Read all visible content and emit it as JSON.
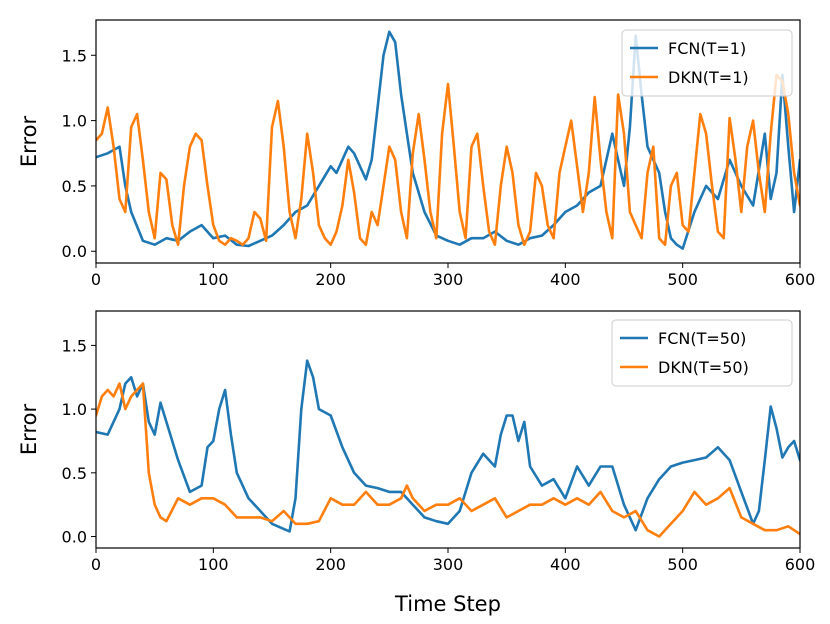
{
  "colors": {
    "fcn": "#1f77b4",
    "dkn": "#ff7f0e"
  },
  "chart_data": [
    {
      "type": "line",
      "xlabel": "",
      "ylabel": "Error",
      "xlim": [
        0,
        600
      ],
      "ylim": [
        -0.09,
        1.77
      ],
      "xticks": [
        0,
        100,
        200,
        300,
        400,
        500,
        600
      ],
      "yticks": [
        0.0,
        0.5,
        1.0,
        1.5
      ],
      "ytick_labels": [
        "0.0",
        "0.5",
        "1.0",
        "1.5"
      ],
      "legend_position": "top-right",
      "series": [
        {
          "name": "FCN(T=1)",
          "color": "#1f77b4",
          "x": [
            0,
            10,
            20,
            25,
            30,
            40,
            50,
            60,
            70,
            80,
            90,
            100,
            110,
            120,
            130,
            140,
            150,
            160,
            170,
            180,
            190,
            200,
            205,
            210,
            215,
            220,
            230,
            235,
            240,
            245,
            250,
            255,
            260,
            265,
            270,
            280,
            290,
            300,
            310,
            320,
            330,
            340,
            350,
            360,
            370,
            380,
            390,
            400,
            410,
            420,
            430,
            440,
            445,
            450,
            455,
            460,
            465,
            470,
            480,
            485,
            490,
            495,
            500,
            510,
            520,
            530,
            540,
            550,
            560,
            570,
            575,
            580,
            585,
            590,
            595,
            600
          ],
          "values": [
            0.72,
            0.75,
            0.8,
            0.5,
            0.3,
            0.08,
            0.05,
            0.1,
            0.08,
            0.15,
            0.2,
            0.1,
            0.12,
            0.05,
            0.04,
            0.08,
            0.12,
            0.2,
            0.3,
            0.35,
            0.5,
            0.65,
            0.6,
            0.7,
            0.8,
            0.75,
            0.55,
            0.7,
            1.1,
            1.5,
            1.68,
            1.6,
            1.2,
            0.9,
            0.6,
            0.3,
            0.12,
            0.08,
            0.05,
            0.1,
            0.1,
            0.15,
            0.08,
            0.05,
            0.1,
            0.12,
            0.2,
            0.3,
            0.35,
            0.45,
            0.5,
            0.9,
            0.7,
            0.5,
            0.95,
            1.65,
            1.2,
            0.8,
            0.6,
            0.3,
            0.1,
            0.05,
            0.02,
            0.3,
            0.5,
            0.4,
            0.7,
            0.5,
            0.35,
            0.9,
            0.4,
            0.6,
            1.35,
            0.8,
            0.3,
            0.7
          ]
        },
        {
          "name": "DKN(T=1)",
          "color": "#ff7f0e",
          "x": [
            0,
            5,
            10,
            15,
            20,
            25,
            30,
            35,
            40,
            45,
            50,
            55,
            60,
            65,
            70,
            75,
            80,
            85,
            90,
            95,
            100,
            105,
            110,
            115,
            120,
            125,
            130,
            135,
            140,
            145,
            150,
            155,
            160,
            165,
            170,
            175,
            180,
            185,
            190,
            195,
            200,
            205,
            210,
            215,
            220,
            225,
            230,
            235,
            240,
            245,
            250,
            255,
            260,
            265,
            270,
            275,
            280,
            285,
            290,
            295,
            300,
            305,
            310,
            315,
            320,
            325,
            330,
            335,
            340,
            345,
            350,
            355,
            360,
            365,
            370,
            375,
            380,
            385,
            390,
            395,
            400,
            405,
            410,
            415,
            420,
            425,
            430,
            435,
            440,
            445,
            450,
            455,
            460,
            465,
            470,
            475,
            480,
            485,
            490,
            495,
            500,
            505,
            510,
            515,
            520,
            525,
            530,
            535,
            540,
            545,
            550,
            555,
            560,
            565,
            570,
            575,
            580,
            585,
            590,
            595,
            600
          ],
          "values": [
            0.85,
            0.9,
            1.1,
            0.8,
            0.4,
            0.3,
            0.95,
            1.05,
            0.7,
            0.3,
            0.1,
            0.6,
            0.55,
            0.2,
            0.05,
            0.5,
            0.8,
            0.9,
            0.85,
            0.5,
            0.2,
            0.08,
            0.05,
            0.1,
            0.08,
            0.05,
            0.1,
            0.3,
            0.25,
            0.08,
            0.95,
            1.15,
            0.8,
            0.3,
            0.1,
            0.4,
            0.9,
            0.6,
            0.2,
            0.1,
            0.05,
            0.15,
            0.35,
            0.7,
            0.45,
            0.1,
            0.05,
            0.3,
            0.2,
            0.5,
            0.8,
            0.7,
            0.3,
            0.1,
            0.75,
            1.05,
            0.7,
            0.3,
            0.1,
            0.9,
            1.28,
            0.8,
            0.3,
            0.1,
            0.8,
            0.9,
            0.5,
            0.15,
            0.05,
            0.5,
            0.8,
            0.6,
            0.2,
            0.05,
            0.15,
            0.6,
            0.5,
            0.2,
            0.1,
            0.6,
            0.8,
            1.0,
            0.65,
            0.3,
            0.6,
            1.18,
            0.7,
            0.3,
            0.1,
            1.2,
            0.9,
            0.3,
            0.2,
            0.1,
            0.6,
            0.8,
            0.1,
            0.05,
            0.5,
            0.6,
            0.2,
            0.15,
            0.6,
            1.05,
            0.9,
            0.5,
            0.15,
            0.1,
            1.02,
            0.7,
            0.3,
            0.8,
            1.0,
            0.6,
            0.3,
            0.9,
            1.35,
            1.3,
            1.05,
            0.6,
            0.35
          ]
        }
      ]
    },
    {
      "type": "line",
      "xlabel": "Time Step",
      "ylabel": "Error",
      "xlim": [
        0,
        600
      ],
      "ylim": [
        -0.09,
        1.77
      ],
      "xticks": [
        0,
        100,
        200,
        300,
        400,
        500,
        600
      ],
      "yticks": [
        0.0,
        0.5,
        1.0,
        1.5
      ],
      "ytick_labels": [
        "0.0",
        "0.5",
        "1.0",
        "1.5"
      ],
      "legend_position": "top-right",
      "series": [
        {
          "name": "FCN(T=50)",
          "color": "#1f77b4",
          "x": [
            0,
            10,
            20,
            25,
            30,
            35,
            40,
            45,
            50,
            55,
            60,
            70,
            80,
            90,
            95,
            100,
            105,
            110,
            115,
            120,
            130,
            140,
            150,
            160,
            165,
            170,
            175,
            180,
            185,
            190,
            200,
            210,
            220,
            230,
            240,
            250,
            260,
            270,
            280,
            290,
            300,
            310,
            320,
            330,
            340,
            345,
            350,
            355,
            360,
            365,
            370,
            380,
            390,
            400,
            410,
            420,
            430,
            440,
            450,
            460,
            470,
            480,
            490,
            500,
            510,
            520,
            530,
            540,
            550,
            560,
            565,
            570,
            575,
            580,
            585,
            590,
            595,
            600
          ],
          "values": [
            0.82,
            0.8,
            1.0,
            1.2,
            1.25,
            1.1,
            1.2,
            0.9,
            0.8,
            1.05,
            0.9,
            0.6,
            0.35,
            0.4,
            0.7,
            0.75,
            1.0,
            1.15,
            0.8,
            0.5,
            0.3,
            0.2,
            0.1,
            0.06,
            0.04,
            0.3,
            1.0,
            1.38,
            1.25,
            1.0,
            0.95,
            0.7,
            0.5,
            0.4,
            0.38,
            0.35,
            0.35,
            0.25,
            0.15,
            0.12,
            0.1,
            0.2,
            0.5,
            0.65,
            0.55,
            0.8,
            0.95,
            0.95,
            0.75,
            0.9,
            0.55,
            0.4,
            0.45,
            0.3,
            0.55,
            0.4,
            0.55,
            0.55,
            0.25,
            0.05,
            0.3,
            0.45,
            0.55,
            0.58,
            0.6,
            0.62,
            0.7,
            0.6,
            0.35,
            0.1,
            0.2,
            0.6,
            1.02,
            0.85,
            0.62,
            0.7,
            0.75,
            0.6
          ]
        },
        {
          "name": "DKN(T=50)",
          "color": "#ff7f0e",
          "x": [
            0,
            5,
            10,
            15,
            20,
            25,
            30,
            35,
            40,
            45,
            50,
            55,
            60,
            70,
            80,
            90,
            100,
            110,
            120,
            130,
            140,
            150,
            160,
            170,
            180,
            190,
            200,
            210,
            220,
            230,
            240,
            250,
            260,
            265,
            270,
            280,
            290,
            300,
            310,
            320,
            330,
            340,
            350,
            360,
            370,
            380,
            390,
            400,
            410,
            420,
            430,
            440,
            450,
            460,
            470,
            480,
            490,
            500,
            510,
            520,
            530,
            540,
            550,
            560,
            570,
            580,
            590,
            600
          ],
          "values": [
            0.95,
            1.1,
            1.15,
            1.1,
            1.2,
            1.0,
            1.1,
            1.15,
            1.2,
            0.5,
            0.25,
            0.15,
            0.12,
            0.3,
            0.25,
            0.3,
            0.3,
            0.25,
            0.15,
            0.15,
            0.15,
            0.12,
            0.2,
            0.1,
            0.1,
            0.12,
            0.3,
            0.25,
            0.25,
            0.35,
            0.25,
            0.25,
            0.3,
            0.4,
            0.3,
            0.2,
            0.25,
            0.25,
            0.3,
            0.2,
            0.25,
            0.3,
            0.15,
            0.2,
            0.25,
            0.25,
            0.3,
            0.25,
            0.3,
            0.25,
            0.35,
            0.2,
            0.15,
            0.2,
            0.05,
            0.0,
            0.1,
            0.2,
            0.35,
            0.25,
            0.3,
            0.38,
            0.15,
            0.1,
            0.05,
            0.05,
            0.08,
            0.02
          ]
        }
      ]
    }
  ]
}
